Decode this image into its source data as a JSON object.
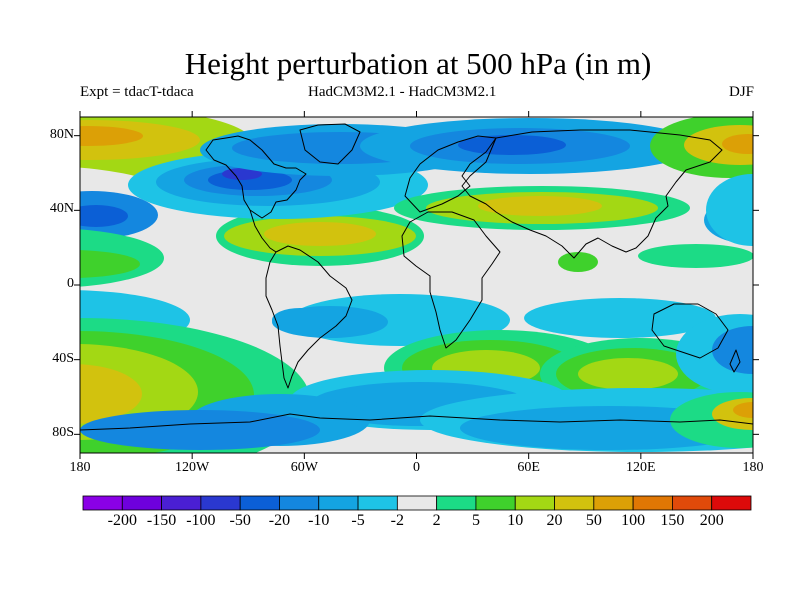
{
  "title": "Height perturbation at 500 hPa (in m)",
  "experiment": "Expt = tdacT-tdaca",
  "models": "HadCM3M2.1 - HadCM3M2.1",
  "season": "DJF",
  "lat_labels": [
    {
      "text": "80N",
      "lat": 80
    },
    {
      "text": "40N",
      "lat": 40
    },
    {
      "text": "0",
      "lat": 0
    },
    {
      "text": "40S",
      "lat": -40
    },
    {
      "text": "80S",
      "lat": -80
    }
  ],
  "lon_labels": [
    {
      "text": "180",
      "lon": -180
    },
    {
      "text": "120W",
      "lon": -120
    },
    {
      "text": "60W",
      "lon": -60
    },
    {
      "text": "0",
      "lon": 0
    },
    {
      "text": "60E",
      "lon": 60
    },
    {
      "text": "120E",
      "lon": 120
    },
    {
      "text": "180",
      "lon": 180
    }
  ],
  "colorbar": {
    "colors": [
      "#8a00e6",
      "#6e00dd",
      "#4a1fd3",
      "#2a38d0",
      "#0b5fd6",
      "#1487df",
      "#14a4e2",
      "#1ec3e6",
      "#e8e8e8",
      "#1cdb86",
      "#3fd12c",
      "#a3d814",
      "#d2c20e",
      "#dca006",
      "#e07704",
      "#e04a0a",
      "#dd0a0a"
    ],
    "labels": [
      "-200",
      "-150",
      "-100",
      "-50",
      "-20",
      "-10",
      "-5",
      "-2",
      "2",
      "5",
      "10",
      "20",
      "50",
      "100",
      "150",
      "200"
    ]
  }
}
